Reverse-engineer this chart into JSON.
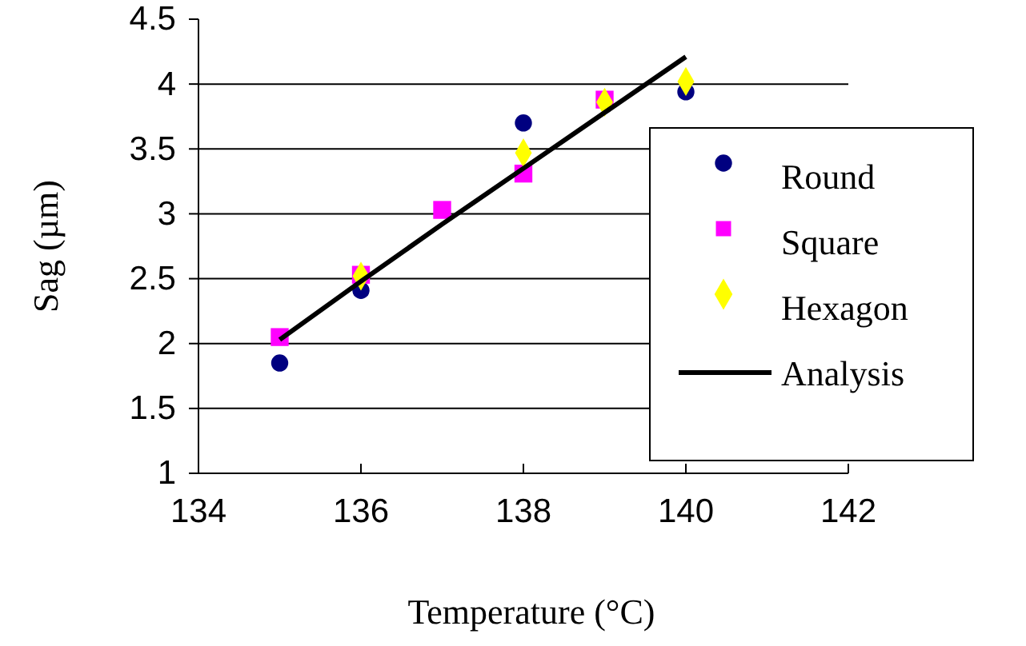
{
  "chart_data": {
    "type": "scatter",
    "xlabel": "Temperature (°C)",
    "ylabel": "Sag (µm)",
    "xlim": [
      134,
      142
    ],
    "xticks": [
      134,
      136,
      138,
      140,
      142
    ],
    "ylim": [
      1,
      4.5
    ],
    "yticks": [
      1,
      1.5,
      2,
      2.5,
      3,
      3.5,
      4,
      4.5
    ],
    "grid": "y",
    "legend": "right",
    "series": [
      {
        "name": "Round",
        "color": "#000080",
        "marker": "circle",
        "x": [
          135,
          136,
          138,
          140
        ],
        "values": [
          1.85,
          2.41,
          3.7,
          3.94
        ]
      },
      {
        "name": "Square",
        "color": "#ff00ff",
        "marker": "square",
        "x": [
          135,
          136,
          137,
          138,
          139
        ],
        "values": [
          2.05,
          2.53,
          3.03,
          3.31,
          3.88
        ]
      },
      {
        "name": "Hexagon",
        "color": "#ffff00",
        "marker": "diamond",
        "x": [
          136,
          138,
          139,
          140
        ],
        "values": [
          2.52,
          3.47,
          3.86,
          4.02
        ]
      },
      {
        "name": "Analysis",
        "color": "#000000",
        "type": "line",
        "marker": "none",
        "x": [
          135,
          136,
          137,
          138,
          139,
          140
        ],
        "values": [
          2.03,
          2.48,
          2.92,
          3.35,
          3.78,
          4.21
        ]
      }
    ]
  }
}
